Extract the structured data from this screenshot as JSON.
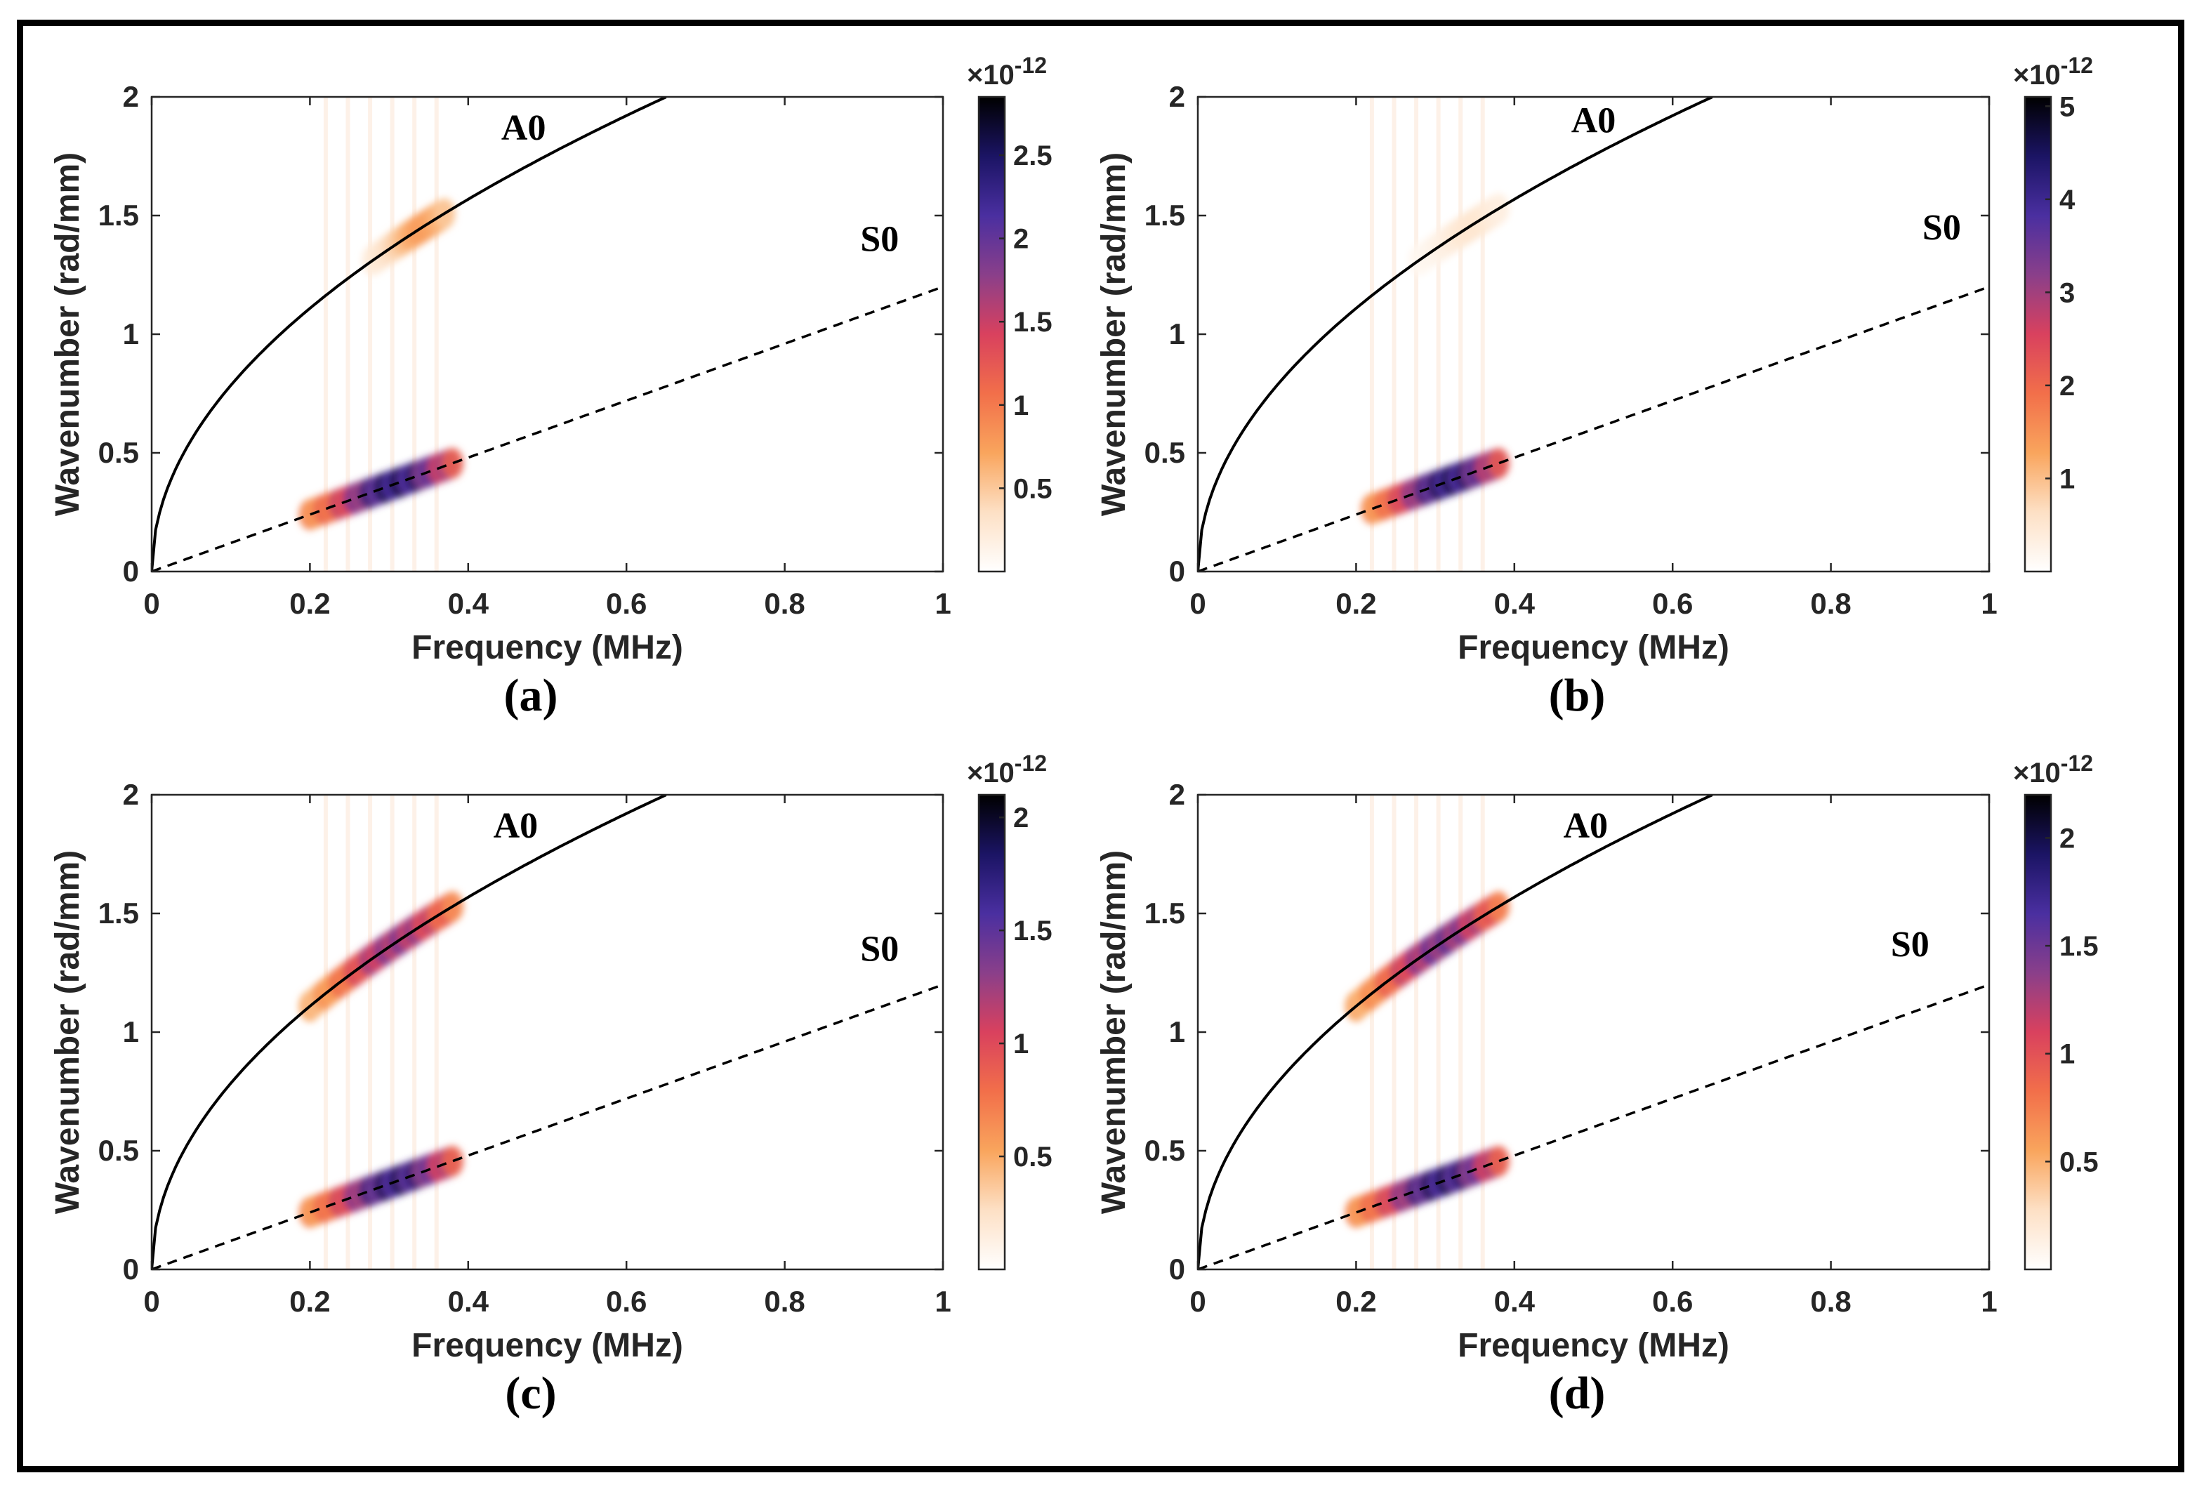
{
  "figure": {
    "description_free": true
  },
  "chart_data": [
    {
      "panel": "(a)",
      "type": "heatmap",
      "xlabel": "Frequency (MHz)",
      "ylabel": "Wavenumber (rad/mm)",
      "xlim": [
        0,
        1
      ],
      "ylim": [
        0,
        2
      ],
      "xticks": [
        "0",
        "0.2",
        "0.4",
        "0.6",
        "0.8",
        "1"
      ],
      "yticks": [
        "0",
        "0.5",
        "1",
        "1.5",
        "2"
      ],
      "colorbar": {
        "exponent": "×10-12",
        "ticks": [
          "0.5",
          "1",
          "1.5",
          "2",
          "2.5"
        ],
        "tick_values": [
          0.5,
          1,
          1.5,
          2,
          2.5
        ],
        "max": 2.85
      },
      "curves": [
        {
          "name": "A0",
          "label": "A0",
          "style": "solid",
          "label_pos": [
            0.47,
            1.82
          ]
        },
        {
          "name": "S0",
          "label": "S0",
          "style": "dashed",
          "label_pos": [
            0.92,
            1.35
          ]
        }
      ],
      "intensity_peaks": [
        {
          "mode": "A0",
          "f_from": 0.28,
          "f_to": 0.37,
          "peak": 0.9
        },
        {
          "mode": "S0",
          "f_from": 0.2,
          "f_to": 0.38,
          "peak": 2.8
        }
      ]
    },
    {
      "panel": "(b)",
      "type": "heatmap",
      "xlabel": "Frequency (MHz)",
      "ylabel": "Wavenumber (rad/mm)",
      "xlim": [
        0,
        1
      ],
      "ylim": [
        0,
        2
      ],
      "xticks": [
        "0",
        "0.2",
        "0.4",
        "0.6",
        "0.8",
        "1"
      ],
      "yticks": [
        "0",
        "0.5",
        "1",
        "1.5",
        "2"
      ],
      "colorbar": {
        "exponent": "×10-12",
        "ticks": [
          "1",
          "2",
          "3",
          "4",
          "5"
        ],
        "tick_values": [
          1,
          2,
          3,
          4,
          5
        ],
        "max": 5.1
      },
      "curves": [
        {
          "name": "A0",
          "label": "A0",
          "style": "solid",
          "label_pos": [
            0.5,
            1.85
          ]
        },
        {
          "name": "S0",
          "label": "S0",
          "style": "dashed",
          "label_pos": [
            0.94,
            1.4
          ]
        }
      ],
      "intensity_peaks": [
        {
          "mode": "A0",
          "f_from": 0.28,
          "f_to": 0.38,
          "peak": 0.6
        },
        {
          "mode": "S0",
          "f_from": 0.22,
          "f_to": 0.38,
          "peak": 5.0
        }
      ]
    },
    {
      "panel": "(c)",
      "type": "heatmap",
      "xlabel": "Frequency (MHz)",
      "ylabel": "Wavenumber (rad/mm)",
      "xlim": [
        0,
        1
      ],
      "ylim": [
        0,
        2
      ],
      "xticks": [
        "0",
        "0.2",
        "0.4",
        "0.6",
        "0.8",
        "1"
      ],
      "yticks": [
        "0",
        "0.5",
        "1",
        "1.5",
        "2"
      ],
      "colorbar": {
        "exponent": "×10-12",
        "ticks": [
          "0.5",
          "1",
          "1.5",
          "2"
        ],
        "tick_values": [
          0.5,
          1,
          1.5,
          2
        ],
        "max": 2.1
      },
      "curves": [
        {
          "name": "A0",
          "label": "A0",
          "style": "solid",
          "label_pos": [
            0.46,
            1.82
          ]
        },
        {
          "name": "S0",
          "label": "S0",
          "style": "dashed",
          "label_pos": [
            0.92,
            1.3
          ]
        }
      ],
      "intensity_peaks": [
        {
          "mode": "A0",
          "f_from": 0.2,
          "f_to": 0.38,
          "peak": 1.5
        },
        {
          "mode": "S0",
          "f_from": 0.2,
          "f_to": 0.38,
          "peak": 2.0
        }
      ]
    },
    {
      "panel": "(d)",
      "type": "heatmap",
      "xlabel": "Frequency (MHz)",
      "ylabel": "Wavenumber (rad/mm)",
      "xlim": [
        0,
        1
      ],
      "ylim": [
        0,
        2
      ],
      "xticks": [
        "0",
        "0.2",
        "0.4",
        "0.6",
        "0.8",
        "1"
      ],
      "yticks": [
        "0",
        "0.5",
        "1",
        "1.5",
        "2"
      ],
      "colorbar": {
        "exponent": "×10-12",
        "ticks": [
          "0.5",
          "1",
          "1.5",
          "2"
        ],
        "tick_values": [
          0.5,
          1,
          1.5,
          2
        ],
        "max": 2.2
      },
      "curves": [
        {
          "name": "A0",
          "label": "A0",
          "style": "solid",
          "label_pos": [
            0.49,
            1.82
          ]
        },
        {
          "name": "S0",
          "label": "S0",
          "style": "dashed",
          "label_pos": [
            0.9,
            1.32
          ]
        }
      ],
      "intensity_peaks": [
        {
          "mode": "A0",
          "f_from": 0.2,
          "f_to": 0.38,
          "peak": 1.7
        },
        {
          "mode": "S0",
          "f_from": 0.2,
          "f_to": 0.38,
          "peak": 2.1
        }
      ]
    }
  ],
  "colormap": [
    "#ffffff",
    "#fde0c5",
    "#f9a55d",
    "#f26f4a",
    "#d9415e",
    "#8a3f8a",
    "#4a2fa0",
    "#1b1464",
    "#000000"
  ]
}
